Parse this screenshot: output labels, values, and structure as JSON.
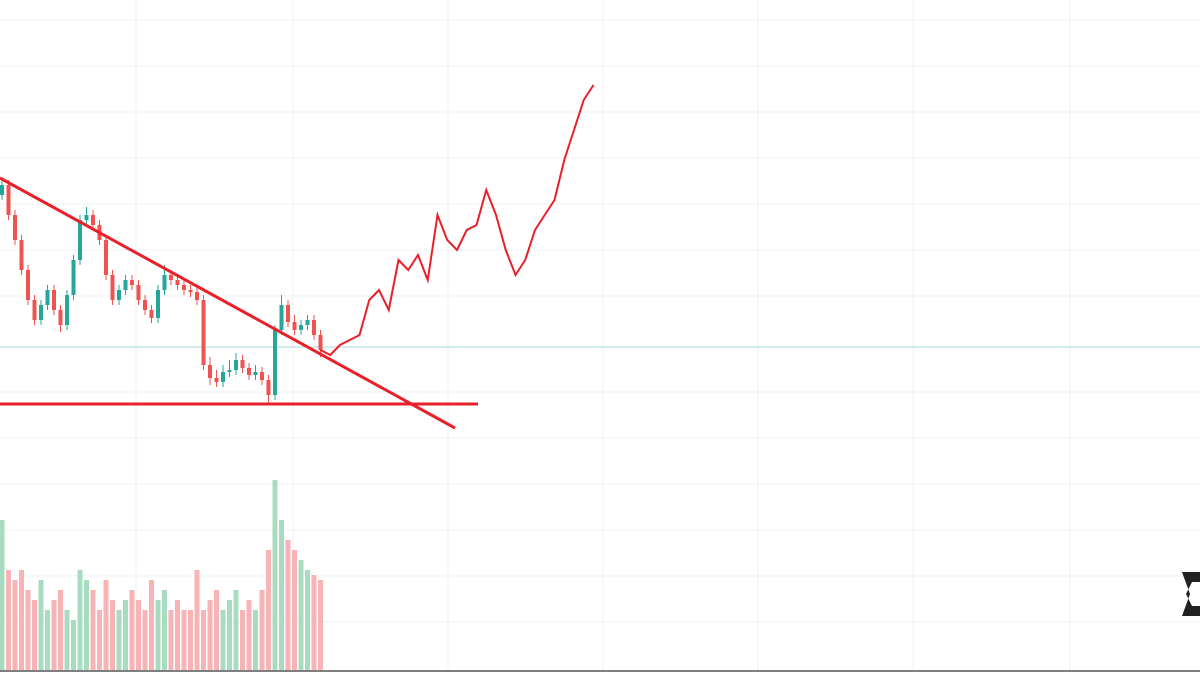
{
  "chart_data": {
    "type": "candlestick",
    "ylim": [
      0,
      675
    ],
    "volume_ylim": [
      0,
      675
    ],
    "up_color": "#26a69a",
    "down_color": "#ef5350",
    "volume_up_color": "#a8dcc0",
    "volume_down_color": "#f7b3b6",
    "open": [
      480,
      490,
      460,
      435,
      405,
      375,
      355,
      370,
      385,
      365,
      350,
      380,
      415,
      455,
      460,
      450,
      435,
      400,
      375,
      385,
      395,
      390,
      375,
      365,
      357,
      385,
      400,
      395,
      390,
      385,
      383,
      375,
      310,
      297,
      293,
      303,
      305,
      315,
      307,
      300,
      303,
      295,
      280,
      345,
      370,
      353,
      345,
      350,
      355,
      340
    ],
    "high": [
      495,
      495,
      465,
      440,
      410,
      380,
      375,
      390,
      390,
      370,
      385,
      420,
      460,
      468,
      465,
      455,
      440,
      405,
      390,
      400,
      400,
      395,
      380,
      370,
      390,
      410,
      405,
      400,
      395,
      390,
      388,
      380,
      318,
      305,
      310,
      315,
      322,
      320,
      312,
      310,
      308,
      300,
      350,
      380,
      375,
      360,
      355,
      360,
      360,
      345
    ],
    "low": [
      475,
      455,
      430,
      400,
      370,
      350,
      350,
      365,
      360,
      343,
      345,
      375,
      410,
      450,
      445,
      430,
      395,
      370,
      370,
      380,
      385,
      370,
      360,
      352,
      352,
      380,
      390,
      385,
      380,
      378,
      370,
      305,
      290,
      288,
      288,
      298,
      300,
      302,
      295,
      295,
      290,
      270,
      275,
      340,
      348,
      340,
      340,
      345,
      335,
      318
    ],
    "close": [
      490,
      460,
      435,
      405,
      375,
      355,
      370,
      385,
      365,
      350,
      380,
      415,
      455,
      460,
      450,
      435,
      400,
      375,
      385,
      395,
      390,
      375,
      365,
      357,
      385,
      400,
      395,
      390,
      385,
      383,
      375,
      310,
      297,
      293,
      303,
      305,
      315,
      307,
      300,
      303,
      295,
      280,
      345,
      370,
      353,
      345,
      350,
      355,
      340,
      325
    ],
    "volume": [
      150,
      100,
      90,
      100,
      80,
      70,
      90,
      60,
      70,
      80,
      60,
      50,
      100,
      90,
      80,
      60,
      90,
      70,
      60,
      70,
      80,
      70,
      60,
      90,
      70,
      80,
      60,
      70,
      60,
      60,
      100,
      60,
      70,
      80,
      60,
      70,
      80,
      60,
      70,
      60,
      80,
      120,
      190,
      150,
      130,
      120,
      110,
      100,
      95,
      90
    ],
    "projection": {
      "color": "#e8202a",
      "x": [
        49,
        50.5,
        52,
        53.5,
        55,
        56.5,
        58,
        59.5,
        61,
        62.5,
        64,
        65.5,
        67,
        68.5,
        70,
        71.5,
        73,
        74.5,
        76,
        77.5,
        79,
        80.5,
        82,
        83.5,
        85,
        86.5,
        88,
        89.5,
        91
      ],
      "values": [
        325,
        320,
        330,
        335,
        340,
        375,
        385,
        365,
        415,
        405,
        420,
        395,
        460,
        435,
        425,
        445,
        450,
        485,
        460,
        425,
        400,
        415,
        445,
        460,
        475,
        515,
        545,
        575,
        590
      ]
    }
  }
}
